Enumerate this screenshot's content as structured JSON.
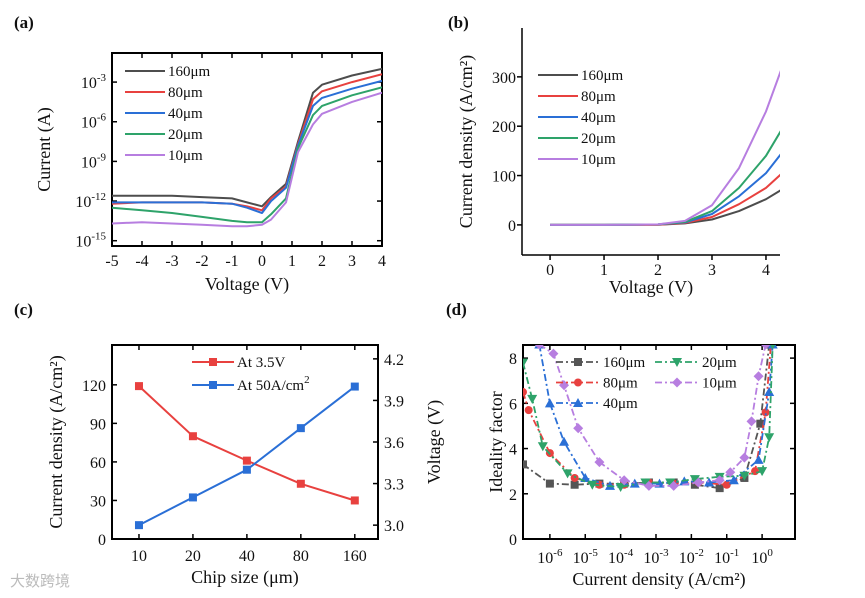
{
  "chart_data": [
    {
      "panel": "(a)",
      "type": "line",
      "xlabel": "Voltage (V)",
      "ylabel": "Current (A)",
      "yscale": "log10",
      "xlim": [
        -5,
        4
      ],
      "ylim_log10": [
        -15.4,
        -0.8
      ],
      "xticks": [
        -5,
        -4,
        -3,
        -2,
        -1,
        0,
        1,
        2,
        3,
        4
      ],
      "xtick_labels": [
        "-5",
        "-4",
        "-3",
        "-2",
        "-1",
        "0",
        "1",
        "2",
        "3",
        "4"
      ],
      "yticks_log10": [
        -15,
        -12,
        -9,
        -6,
        -3
      ],
      "ytick_labels": [
        "10^-15",
        "10^-12",
        "10^-9",
        "10^-6",
        "10^-3"
      ],
      "legend_position": "top-left",
      "x": [
        -5,
        -4,
        -3,
        -2,
        -1,
        -0.5,
        0,
        0.3,
        0.8,
        1.2,
        1.7,
        2,
        3,
        4
      ],
      "series": [
        {
          "name": "160μm",
          "color": "#4d4d4d",
          "log10_values": [
            -11.6,
            -11.6,
            -11.6,
            -11.7,
            -11.8,
            -12.1,
            -12.4,
            -11.7,
            -10.7,
            -7.5,
            -3.8,
            -3.2,
            -2.5,
            -2.0
          ]
        },
        {
          "name": "80μm",
          "color": "#e8413f",
          "log10_values": [
            -12.2,
            -12.1,
            -12.1,
            -12.1,
            -12.2,
            -12.4,
            -12.7,
            -11.8,
            -10.9,
            -7.7,
            -4.3,
            -3.7,
            -3.0,
            -2.4
          ]
        },
        {
          "name": "40μm",
          "color": "#2a6fd6",
          "log10_values": [
            -12.1,
            -12.1,
            -12.1,
            -12.1,
            -12.2,
            -12.5,
            -12.9,
            -12.0,
            -11.0,
            -7.8,
            -4.8,
            -4.2,
            -3.5,
            -2.9
          ]
        },
        {
          "name": "20μm",
          "color": "#2ea36a",
          "log10_values": [
            -12.5,
            -12.7,
            -12.9,
            -13.2,
            -13.5,
            -13.6,
            -13.6,
            -13.0,
            -11.8,
            -8.0,
            -5.5,
            -4.8,
            -4.0,
            -3.4
          ]
        },
        {
          "name": "10μm",
          "color": "#b77ee0",
          "log10_values": [
            -13.7,
            -13.6,
            -13.7,
            -13.8,
            -13.9,
            -13.9,
            -13.8,
            -13.4,
            -12.1,
            -8.3,
            -6.2,
            -5.4,
            -4.5,
            -3.8
          ]
        }
      ]
    },
    {
      "panel": "(b)",
      "type": "line",
      "xlabel": "Voltage (V)",
      "ylabel": "Current density (A/cm²)",
      "xlim": [
        -0.52,
        4.26
      ],
      "ylim": [
        -61,
        399
      ],
      "xticks": [
        0,
        1,
        2,
        3,
        4
      ],
      "xtick_labels": [
        "0",
        "1",
        "2",
        "3",
        "4"
      ],
      "yticks": [
        0,
        100,
        200,
        300
      ],
      "ytick_labels": [
        "0",
        "100",
        "200",
        "300"
      ],
      "legend_position": "top-left",
      "x": [
        0,
        1,
        2,
        2.5,
        3,
        3.5,
        4,
        4.3
      ],
      "series": [
        {
          "name": "160μm",
          "color": "#4d4d4d",
          "values": [
            0,
            0,
            0.5,
            3,
            11,
            28,
            52,
            72
          ]
        },
        {
          "name": "80μm",
          "color": "#e8413f",
          "values": [
            0,
            0,
            0.5,
            4,
            16,
            42,
            75,
            105
          ]
        },
        {
          "name": "40μm",
          "color": "#2a6fd6",
          "values": [
            0,
            0,
            1,
            5,
            22,
            58,
            105,
            147
          ]
        },
        {
          "name": "20μm",
          "color": "#2ea36a",
          "values": [
            0,
            0,
            1,
            6,
            28,
            75,
            140,
            195
          ]
        },
        {
          "name": "10μm",
          "color": "#b77ee0",
          "values": [
            0,
            0,
            1,
            8,
            40,
            115,
            230,
            320
          ]
        }
      ]
    },
    {
      "panel": "(c)",
      "type": "line",
      "xlabel": "Chip size (μm)",
      "ylabel": "Current density (A/cm²)",
      "ylabel_right": "Voltage (V)",
      "categories": [
        "10",
        "20",
        "40",
        "80",
        "160"
      ],
      "ylim": [
        0,
        151
      ],
      "ylim_right": [
        2.9,
        4.3
      ],
      "yticks": [
        0,
        30,
        60,
        90,
        120
      ],
      "ytick_labels": [
        "0",
        "30",
        "60",
        "90",
        "120"
      ],
      "yticks_right": [
        3.0,
        3.3,
        3.6,
        3.9,
        4.2
      ],
      "ytick_labels_right": [
        "3.0",
        "3.3",
        "3.6",
        "3.9",
        "4.2"
      ],
      "legend_position": "top-center",
      "series": [
        {
          "name": "At 3.5V",
          "color": "#e8413f",
          "axis": "left",
          "marker": "square",
          "values": [
            119,
            80,
            61,
            43,
            30
          ]
        },
        {
          "name": "At 50A/cm²",
          "color": "#2a6fd6",
          "axis": "right",
          "marker": "square",
          "values": [
            3.0,
            3.2,
            3.4,
            3.7,
            4.0
          ]
        }
      ]
    },
    {
      "panel": "(d)",
      "type": "line",
      "xlabel": "Current density (A/cm²)",
      "ylabel": "Ideality factor",
      "xscale": "log10",
      "xlim_log10": [
        -6.76,
        0.93
      ],
      "ylim": [
        0,
        8.58
      ],
      "xticks_log10": [
        -6,
        -5,
        -4,
        -3,
        -2,
        -1,
        0
      ],
      "xtick_labels": [
        "10^-6",
        "10^-5",
        "10^-4",
        "10^-3",
        "10^-2",
        "10^-1",
        "10^0"
      ],
      "yticks": [
        0,
        2,
        4,
        6,
        8
      ],
      "ytick_labels": [
        "0",
        "2",
        "4",
        "6",
        "8"
      ],
      "legend_position": "top-center",
      "series": [
        {
          "name": "160μm",
          "color": "#555555",
          "marker": "square",
          "x_log10": [
            -6.76,
            -6.0,
            -5.3,
            -4.6,
            -3.9,
            -3.2,
            -2.5,
            -1.9,
            -1.2,
            -0.5,
            -0.05,
            0.2
          ],
          "values": [
            3.3,
            2.45,
            2.4,
            2.45,
            2.45,
            2.5,
            2.5,
            2.4,
            2.25,
            2.7,
            5.1,
            8.6
          ]
        },
        {
          "name": "80μm",
          "color": "#e8413f",
          "marker": "circle",
          "x_log10": [
            -6.76,
            -6.6,
            -6.0,
            -5.3,
            -4.6,
            -3.9,
            -3.2,
            -2.5,
            -1.8,
            -1.0,
            -0.2,
            0.1,
            0.25
          ],
          "values": [
            6.5,
            5.7,
            3.8,
            2.7,
            2.4,
            2.4,
            2.5,
            2.45,
            2.5,
            2.4,
            3.0,
            5.6,
            8.6
          ]
        },
        {
          "name": "40μm",
          "color": "#2a6fd6",
          "marker": "triangle-up",
          "x_log10": [
            -6.3,
            -6.0,
            -5.6,
            -5.0,
            -4.3,
            -3.6,
            -2.9,
            -2.2,
            -1.5,
            -0.8,
            -0.1,
            0.2,
            0.3
          ],
          "values": [
            8.6,
            6.0,
            4.3,
            2.7,
            2.35,
            2.45,
            2.45,
            2.55,
            2.5,
            2.6,
            3.5,
            6.5,
            8.6
          ]
        },
        {
          "name": "20μm",
          "color": "#2ea36a",
          "marker": "triangle-down",
          "x_log10": [
            -6.76,
            -6.5,
            -6.2,
            -5.5,
            -4.8,
            -4.0,
            -3.3,
            -2.6,
            -1.9,
            -1.2,
            -0.5,
            0.0,
            0.2,
            0.3
          ],
          "values": [
            7.8,
            6.2,
            4.1,
            2.9,
            2.4,
            2.3,
            2.5,
            2.5,
            2.65,
            2.75,
            2.8,
            3.0,
            4.5,
            8.6
          ]
        },
        {
          "name": "10μm",
          "color": "#b77ee0",
          "marker": "diamond",
          "x_log10": [
            -6.3,
            -5.9,
            -5.6,
            -5.2,
            -4.6,
            -3.9,
            -3.2,
            -2.5,
            -1.8,
            -1.2,
            -0.9,
            -0.5,
            -0.3,
            -0.1,
            0.1
          ],
          "values": [
            8.6,
            8.2,
            6.8,
            4.9,
            3.4,
            2.6,
            2.35,
            2.35,
            2.5,
            2.6,
            2.95,
            3.6,
            5.2,
            7.2,
            8.6
          ]
        }
      ]
    }
  ],
  "panel_labels": [
    "(a)",
    "(b)",
    "(c)",
    "(d)"
  ],
  "watermark": "大数跨境"
}
